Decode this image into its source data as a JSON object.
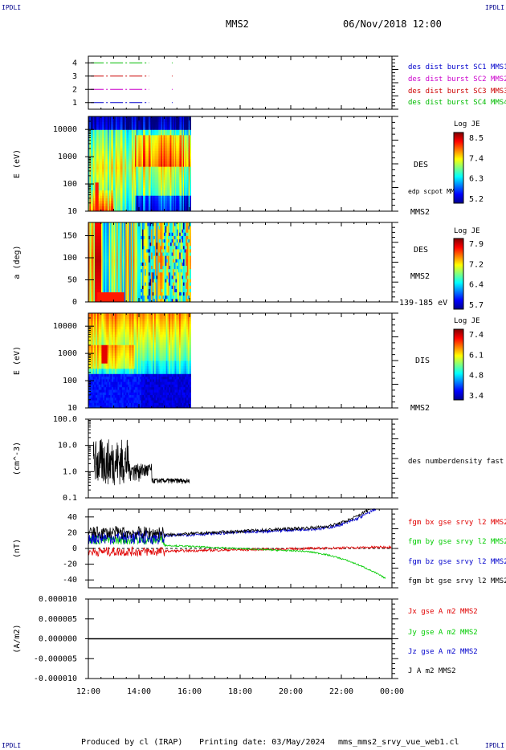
{
  "header": {
    "corner_left_top": "IPDLI",
    "corner_right_top": "IPDLI",
    "corner_left_bottom": "IPDLI",
    "corner_right_bottom": "IPDLI",
    "spacecraft": "MMS2",
    "datetime": "06/Nov/2018 12:00"
  },
  "footer": {
    "produced_by": "Produced by cl (IRAP)",
    "printing_date": "Printing date: 03/May/2024",
    "plot_name": "mms_mms2_srvy_vue_web1.cl"
  },
  "colors": {
    "mms1": "#0000cc",
    "mms2": "#cc00cc",
    "mms3": "#cc0000",
    "mms4": "#00bb00",
    "bx": "#e00000",
    "by": "#00cc00",
    "bz": "#0000cc",
    "bt": "#000000"
  },
  "chart_data": [
    {
      "type": "line",
      "panel": "data-availability",
      "ylim": [
        0.5,
        4.5
      ],
      "yticks": [
        "1",
        "2",
        "3",
        "4"
      ],
      "series": [
        {
          "name": "des dist burst SC1 MMS1",
          "y": 1
        },
        {
          "name": "des dist burst SC2 MMS2",
          "y": 2
        },
        {
          "name": "des dist burst SC3 MMS3",
          "y": 3
        },
        {
          "name": "des dist burst SC4 MMS4",
          "y": 4
        }
      ]
    },
    {
      "type": "heatmap",
      "panel": "des-energy",
      "ylabel": "E (eV)",
      "yscale": "log",
      "ylim": [
        10,
        30000
      ],
      "yticks": [
        "10",
        "100",
        "1000",
        "10000"
      ],
      "label": "DES",
      "sublabel": "MMS2",
      "annotation": "edp scpot MMS2",
      "colorbar": {
        "title": "Log JE",
        "ticks": [
          "8.5",
          "7.4",
          "6.3",
          "5.2"
        ]
      }
    },
    {
      "type": "heatmap",
      "panel": "des-pitch-angle",
      "ylabel": "a (deg)",
      "ylim": [
        0,
        180
      ],
      "yticks": [
        "0",
        "50",
        "100",
        "150"
      ],
      "label": "DES",
      "sublabel": "MMS2",
      "annotation": "139-185 eV",
      "colorbar": {
        "title": "Log JE",
        "ticks": [
          "7.9",
          "7.2",
          "6.4",
          "5.7"
        ]
      }
    },
    {
      "type": "heatmap",
      "panel": "dis-energy",
      "ylabel": "E (eV)",
      "yscale": "log",
      "ylim": [
        10,
        30000
      ],
      "yticks": [
        "10",
        "100",
        "1000",
        "10000"
      ],
      "label": "DIS",
      "sublabel": "MMS2",
      "colorbar": {
        "title": "Log JE",
        "ticks": [
          "7.4",
          "6.1",
          "4.8",
          "3.4"
        ]
      }
    },
    {
      "type": "line",
      "panel": "density",
      "ylabel": "(cm^-3)",
      "yscale": "log",
      "ylim": [
        0.1,
        100
      ],
      "yticks": [
        "0.1",
        "1.0",
        "10.0",
        "100.0"
      ],
      "series": [
        {
          "name": "des numberdensity fast M"
        }
      ]
    },
    {
      "type": "line",
      "panel": "magnetic-field",
      "ylabel": "(nT)",
      "ylim": [
        -50,
        50
      ],
      "yticks": [
        "-40",
        "-20",
        "0",
        "20",
        "40"
      ],
      "series": [
        {
          "name": "fgm bx gse srvy l2 MMS2"
        },
        {
          "name": "fgm by gse srvy l2 MMS2"
        },
        {
          "name": "fgm bz gse srvy l2 MMS2"
        },
        {
          "name": "fgm bt gse srvy l2 MMS2"
        }
      ]
    },
    {
      "type": "line",
      "panel": "current-density",
      "ylabel": "(A/m2)",
      "ylim": [
        -1e-05,
        1e-05
      ],
      "yticks": [
        "-0.000010",
        "-0.000005",
        "0.000000",
        "0.000005",
        "0.000010"
      ],
      "series": [
        {
          "name": "Jx gse A m2 MMS2"
        },
        {
          "name": "Jy gse A m2 MMS2"
        },
        {
          "name": "Jz gse A m2 MMS2"
        },
        {
          "name": "J A m2 MMS2"
        }
      ]
    }
  ],
  "x_axis": {
    "ticks": [
      "12:00",
      "14:00",
      "16:00",
      "18:00",
      "20:00",
      "22:00",
      "00:00"
    ],
    "range_hours": [
      12,
      24
    ]
  }
}
